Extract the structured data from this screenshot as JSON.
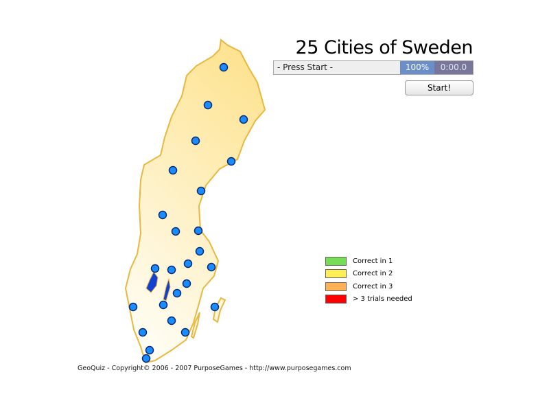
{
  "game": {
    "title": "25 Cities of Sweden",
    "status": "- Press Start -",
    "progress": "100%",
    "timer": "0:00.0",
    "start_label": "Start!"
  },
  "legend": [
    {
      "label": "Correct in 1",
      "color": "#77dd55"
    },
    {
      "label": "Correct in 2",
      "color": "#ffee55"
    },
    {
      "label": "Correct in 3",
      "color": "#ffb055"
    },
    {
      "label": "> 3 trials needed",
      "color": "#ff0000"
    }
  ],
  "map": {
    "land_color": "#fde9a0",
    "border_color": "#e8b840",
    "city_color": "#1a8cff",
    "city_count": 25
  },
  "footer": "GeoQuiz - Copyright© 2006 - 2007 PurposeGames - http://www.purposegames.com"
}
